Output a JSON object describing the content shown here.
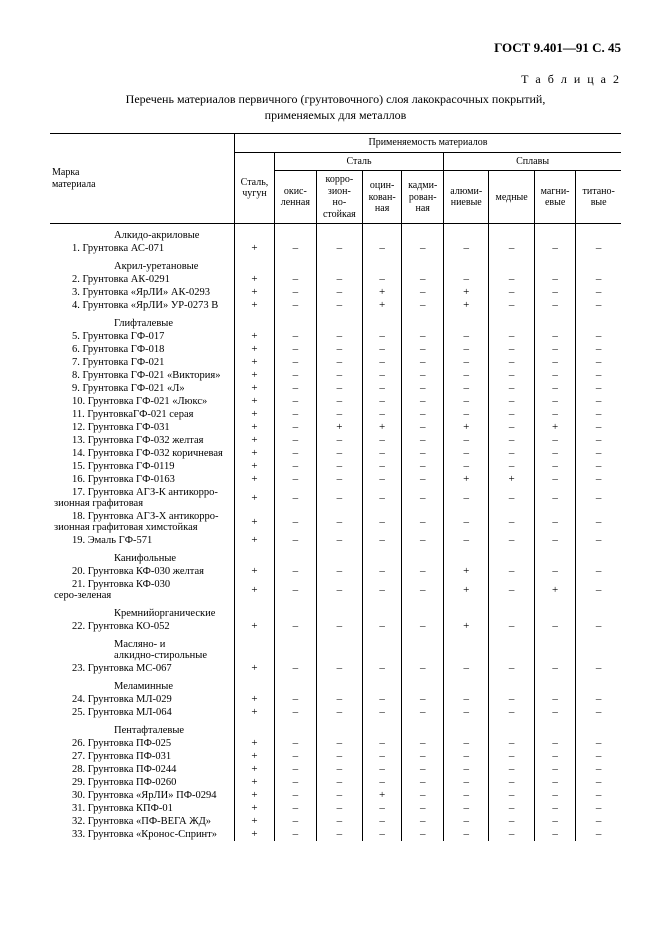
{
  "header": "ГОСТ 9.401—91 С. 45",
  "table_label": "Т а б л и ц а  2",
  "caption_l1": "Перечень материалов первичного (грунтовочного) слоя лакокрасочных покрытий,",
  "caption_l2": "применяемых для металлов",
  "thead": {
    "mark": "Марка\nматериала",
    "applicability": "Применяемость материалов",
    "steel": "Сталь",
    "alloys": "Сплавы",
    "castiron": "Сталь,\nчугун",
    "okis": "окис-\nленная",
    "korr": "корро-\nзион-\nно-\nстойкая",
    "ocink": "оцин-\nкован-\nная",
    "kadm": "кадми-\nрован-\nная",
    "alum": "алюми-\nниевые",
    "med": "медные",
    "magn": "магни-\nевые",
    "titan": "титано-\nвые"
  },
  "groups": [
    {
      "title": "Алкидо-акриловые",
      "rows": [
        {
          "n": "1. Грунтовка АС-071",
          "v": [
            "+",
            "–",
            "–",
            "–",
            "–",
            "–",
            "–",
            "–",
            "–"
          ]
        }
      ]
    },
    {
      "title": "Акрил-уретановые",
      "rows": [
        {
          "n": "2. Грунтовка АК-0291",
          "v": [
            "+",
            "–",
            "–",
            "–",
            "–",
            "–",
            "–",
            "–",
            "–"
          ]
        },
        {
          "n": "3. Грунтовка  «ЯрЛИ» АК-0293",
          "v": [
            "+",
            "–",
            "–",
            "+",
            "–",
            "+",
            "–",
            "–",
            "–"
          ]
        },
        {
          "n": "4. Грунтовка «ЯрЛИ» УР-0273 В",
          "v": [
            "+",
            "–",
            "–",
            "+",
            "–",
            "+",
            "–",
            "–",
            "–"
          ]
        }
      ]
    },
    {
      "title": "Глифталевые",
      "rows": [
        {
          "n": "5. Грунтовка ГФ-017",
          "v": [
            "+",
            "–",
            "–",
            "–",
            "–",
            "–",
            "–",
            "–",
            "–"
          ]
        },
        {
          "n": "6. Грунтовка ГФ-018",
          "v": [
            "+",
            "–",
            "–",
            "–",
            "–",
            "–",
            "–",
            "–",
            "–"
          ]
        },
        {
          "n": "7. Грунтовка ГФ-021",
          "v": [
            "+",
            "–",
            "–",
            "–",
            "–",
            "–",
            "–",
            "–",
            "–"
          ]
        },
        {
          "n": "8. Грунтовка  ГФ-021 «Виктория»",
          "v": [
            "+",
            "–",
            "–",
            "–",
            "–",
            "–",
            "–",
            "–",
            "–"
          ]
        },
        {
          "n": "9. Грунтовка ГФ-021 «Л»",
          "v": [
            "+",
            "–",
            "–",
            "–",
            "–",
            "–",
            "–",
            "–",
            "–"
          ]
        },
        {
          "n": "10. Грунтовка ГФ-021 «Люкс»",
          "v": [
            "+",
            "–",
            "–",
            "–",
            "–",
            "–",
            "–",
            "–",
            "–"
          ]
        },
        {
          "n": "11. ГрунтовкаГФ-021 серая",
          "v": [
            "+",
            "–",
            "–",
            "–",
            "–",
            "–",
            "–",
            "–",
            "–"
          ]
        },
        {
          "n": "12. Грунтовка ГФ-031",
          "v": [
            "+",
            "–",
            "+",
            "+",
            "–",
            "+",
            "–",
            "+",
            "–"
          ]
        },
        {
          "n": "13. Грунтовка ГФ-032 желтая",
          "v": [
            "+",
            "–",
            "–",
            "–",
            "–",
            "–",
            "–",
            "–",
            "–"
          ]
        },
        {
          "n": "14. Грунтовка ГФ-032 коричневая",
          "v": [
            "+",
            "–",
            "–",
            "–",
            "–",
            "–",
            "–",
            "–",
            "–"
          ]
        },
        {
          "n": "15. Грунтовка ГФ-0119",
          "v": [
            "+",
            "–",
            "–",
            "–",
            "–",
            "–",
            "–",
            "–",
            "–"
          ]
        },
        {
          "n": "16. Грунтовка ГФ-0163",
          "v": [
            "+",
            "–",
            "–",
            "–",
            "–",
            "+",
            "+",
            "–",
            "–"
          ]
        },
        {
          "n": "17. Грунтовка АГЗ-К антикорро-\nзионная графитовая",
          "v": [
            "+",
            "–",
            "–",
            "–",
            "–",
            "–",
            "–",
            "–",
            "–"
          ],
          "wrap": true
        },
        {
          "n": "18. Грунтовка АГЗ-Х антикорро-\nзионная графитовая химстойкая",
          "v": [
            "+",
            "–",
            "–",
            "–",
            "–",
            "–",
            "–",
            "–",
            "–"
          ],
          "wrap": true
        },
        {
          "n": "19. Эмаль ГФ-571",
          "v": [
            "+",
            "–",
            "–",
            "–",
            "–",
            "–",
            "–",
            "–",
            "–"
          ]
        }
      ]
    },
    {
      "title": "Канифольные",
      "rows": [
        {
          "n": "20. Грунтовка КФ-030 желтая",
          "v": [
            "+",
            "–",
            "–",
            "–",
            "–",
            "+",
            "–",
            "–",
            "–"
          ]
        },
        {
          "n": "21. Грунтовка КФ-030\nсеро-зеленая",
          "v": [
            "+",
            "–",
            "–",
            "–",
            "–",
            "+",
            "–",
            "+",
            "–"
          ],
          "wrap": true,
          "noindent": true
        }
      ]
    },
    {
      "title": "Кремнийорганические",
      "rows": [
        {
          "n": "22. Грунтовка КО-052",
          "v": [
            "+",
            "–",
            "–",
            "–",
            "–",
            "+",
            "–",
            "–",
            "–"
          ]
        }
      ]
    },
    {
      "title": "Масляно- и\nалкидно-стирольные",
      "titleWrap": true,
      "rows": [
        {
          "n": "23. Грунтовка МС-067",
          "v": [
            "+",
            "–",
            "–",
            "–",
            "–",
            "–",
            "–",
            "–",
            "–"
          ]
        }
      ]
    },
    {
      "title": "Меламинные",
      "rows": [
        {
          "n": "24. Грунтовка МЛ-029",
          "v": [
            "+",
            "–",
            "–",
            "–",
            "–",
            "–",
            "–",
            "–",
            "–"
          ]
        },
        {
          "n": "25. Грунтовка МЛ-064",
          "v": [
            "+",
            "–",
            "–",
            "–",
            "–",
            "–",
            "–",
            "–",
            "–"
          ]
        }
      ]
    },
    {
      "title": "Пентафталевые",
      "rows": [
        {
          "n": "26. Грунтовка ПФ-025",
          "v": [
            "+",
            "–",
            "–",
            "–",
            "–",
            "–",
            "–",
            "–",
            "–"
          ]
        },
        {
          "n": "27. Грунтовка ПФ-031",
          "v": [
            "+",
            "–",
            "–",
            "–",
            "–",
            "–",
            "–",
            "–",
            "–"
          ]
        },
        {
          "n": "28. Грунтовка ПФ-0244",
          "v": [
            "+",
            "–",
            "–",
            "–",
            "–",
            "–",
            "–",
            "–",
            "–"
          ]
        },
        {
          "n": "29. Грунтовка ПФ-0260",
          "v": [
            "+",
            "–",
            "–",
            "–",
            "–",
            "–",
            "–",
            "–",
            "–"
          ]
        },
        {
          "n": "30. Грунтовка «ЯрЛИ» ПФ-0294",
          "v": [
            "+",
            "–",
            "–",
            "+",
            "–",
            "–",
            "–",
            "–",
            "–"
          ]
        },
        {
          "n": "31. Грунтовка КПФ-01",
          "v": [
            "+",
            "–",
            "–",
            "–",
            "–",
            "–",
            "–",
            "–",
            "–"
          ]
        },
        {
          "n": "32. Грунтовка «ПФ-ВЕГА ЖД»",
          "v": [
            "+",
            "–",
            "–",
            "–",
            "–",
            "–",
            "–",
            "–",
            "–"
          ]
        },
        {
          "n": "33. Грунтовка «Кронос-Спринт»",
          "v": [
            "+",
            "–",
            "–",
            "–",
            "–",
            "–",
            "–",
            "–",
            "–"
          ]
        }
      ]
    }
  ]
}
